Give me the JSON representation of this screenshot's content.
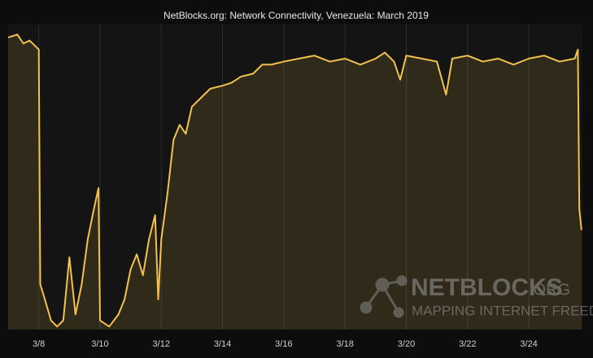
{
  "chart_data": {
    "type": "area",
    "title": "NetBlocks.org: Network Connectivity, Venezuela: March 2019",
    "x": [
      7.0,
      7.3,
      7.5,
      7.7,
      7.9,
      8.0,
      8.05,
      8.2,
      8.4,
      8.6,
      8.8,
      9.0,
      9.2,
      9.4,
      9.6,
      9.8,
      9.95,
      10.0,
      10.3,
      10.6,
      10.8,
      11.0,
      11.2,
      11.4,
      11.6,
      11.8,
      11.9,
      12.0,
      12.2,
      12.4,
      12.6,
      12.8,
      13.0,
      13.3,
      13.6,
      14.0,
      14.3,
      14.6,
      15.0,
      15.3,
      15.6,
      16.0,
      16.5,
      17.0,
      17.5,
      18.0,
      18.5,
      19.0,
      19.3,
      19.6,
      19.8,
      20.0,
      20.5,
      21.0,
      21.3,
      21.5,
      22.0,
      22.5,
      23.0,
      23.5,
      24.0,
      24.5,
      25.0,
      25.5,
      25.6,
      25.65,
      25.72
    ],
    "series": [
      {
        "name": "Connectivity",
        "color": "#f2c14e",
        "values": [
          97,
          98,
          95,
          96,
          94,
          93,
          15,
          10,
          3,
          1,
          3,
          24,
          5,
          15,
          30,
          40,
          47,
          3,
          1,
          5,
          10,
          20,
          25,
          18,
          30,
          38,
          10,
          30,
          45,
          63,
          68,
          65,
          74,
          77,
          80,
          81,
          82,
          84,
          85,
          88,
          88,
          89,
          90,
          91,
          89,
          90,
          88,
          90,
          92,
          89,
          83,
          91,
          90,
          89,
          78,
          90,
          91,
          89,
          90,
          88,
          90,
          91,
          89,
          90,
          93,
          40,
          33
        ]
      }
    ],
    "xlim": [
      7.0,
      25.75
    ],
    "ylim": [
      0,
      100
    ],
    "xticks": [
      {
        "value": 8,
        "label": "3/8"
      },
      {
        "value": 10,
        "label": "3/10"
      },
      {
        "value": 12,
        "label": "3/12"
      },
      {
        "value": 14,
        "label": "3/14"
      },
      {
        "value": 16,
        "label": "3/16"
      },
      {
        "value": 18,
        "label": "3/18"
      },
      {
        "value": 20,
        "label": "3/20"
      },
      {
        "value": 22,
        "label": "3/22"
      },
      {
        "value": 24,
        "label": "3/24"
      }
    ],
    "grid": true,
    "watermark": {
      "brand": "NETBLOCKS",
      "suffix": ".ORG",
      "tagline": "MAPPING INTERNET FREEDOM"
    }
  }
}
